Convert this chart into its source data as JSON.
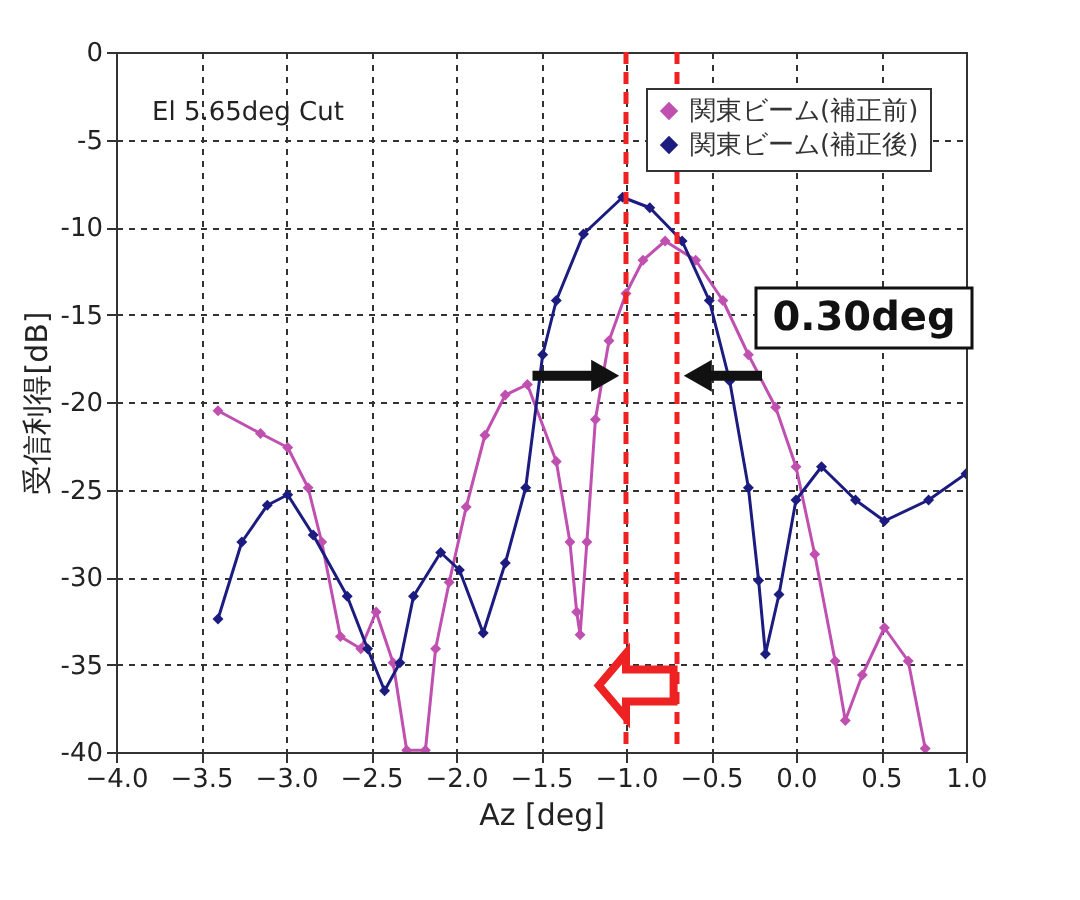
{
  "chart_data": {
    "type": "line",
    "xlabel": "Az [deg]",
    "ylabel": "受信利得[dB]",
    "xlim": [
      -4,
      1
    ],
    "xticks": [
      {
        "value": -4,
        "label": "−4.0"
      },
      {
        "value": -3.5,
        "label": "−3.5"
      },
      {
        "value": -3,
        "label": "−3.0"
      },
      {
        "value": -2.5,
        "label": "−2.5"
      },
      {
        "value": -2,
        "label": "−2.0"
      },
      {
        "value": -1.5,
        "label": "−1.5"
      },
      {
        "value": -1,
        "label": "−1.0"
      },
      {
        "value": -0.5,
        "label": "−0.5"
      },
      {
        "value": 0,
        "label": "0.0"
      },
      {
        "value": 0.5,
        "label": "0.5"
      },
      {
        "value": 1,
        "label": "1.0"
      }
    ],
    "ylim": [
      -40,
      0
    ],
    "yticks": [
      -40,
      -35,
      -30,
      -25,
      -20,
      -15,
      -10,
      -5,
      0
    ],
    "grid": true,
    "legend": "top right",
    "marker": "diamond",
    "line_style": "solid",
    "annotations": [
      "El 5.65deg Cut",
      "0.30deg"
    ],
    "ref_lines": [
      {
        "axis": "x",
        "value": -1.0,
        "color": "#ee2222",
        "line_style": "dashed"
      },
      {
        "axis": "x",
        "value": -0.7,
        "color": "#ee2222",
        "line_style": "dashed"
      }
    ],
    "series": [
      {
        "name": "関東ビーム(補正前)",
        "color": "#c050b0",
        "x": [
          -3.4,
          -3.15,
          -2.99,
          -2.87,
          -2.79,
          -2.68,
          -2.56,
          -2.47,
          -2.37,
          -2.29,
          -2.18,
          -2.12,
          -2.04,
          -1.94,
          -1.83,
          -1.71,
          -1.58,
          -1.41,
          -1.33,
          -1.29,
          -1.27,
          -1.23,
          -1.18,
          -1.1,
          -1.0,
          -0.9,
          -0.77,
          -0.59,
          -0.43,
          -0.28,
          -0.12,
          0.0,
          0.11,
          0.23,
          0.29,
          0.39,
          0.52,
          0.66,
          0.76
        ],
        "values": [
          -20.5,
          -21.8,
          -22.6,
          -24.9,
          -28,
          -33.4,
          -34.1,
          -32,
          -34.9,
          -39.9,
          -39.9,
          -34.1,
          -30.3,
          -26,
          -21.9,
          -19.6,
          -19,
          -23.4,
          -28,
          -32,
          -33.3,
          -28,
          -21,
          -16.5,
          -13.8,
          -11.9,
          -10.8,
          -11.9,
          -14.2,
          -17.3,
          -20.3,
          -23.7,
          -28.7,
          -34.8,
          -38.2,
          -35.6,
          -32.9,
          -34.8,
          -39.8
        ]
      },
      {
        "name": "関東ビーム(補正後)",
        "color": "#1c1c80",
        "x": [
          -3.4,
          -3.26,
          -3.11,
          -2.99,
          -2.84,
          -2.64,
          -2.52,
          -2.42,
          -2.33,
          -2.25,
          -2.09,
          -1.98,
          -1.84,
          -1.71,
          -1.59,
          -1.49,
          -1.41,
          -1.25,
          -1.02,
          -0.86,
          -0.67,
          -0.51,
          -0.39,
          -0.28,
          -0.22,
          -0.18,
          -0.1,
          0.0,
          0.15,
          0.35,
          0.52,
          0.78,
          1.0
        ],
        "values": [
          -32.4,
          -28,
          -25.9,
          -25.3,
          -27.6,
          -31.1,
          -34.1,
          -36.5,
          -34.9,
          -31.1,
          -28.6,
          -29.6,
          -33.2,
          -29.2,
          -24.9,
          -17.3,
          -14.2,
          -10.4,
          -8.3,
          -8.9,
          -10.8,
          -14.2,
          -18.8,
          -24.9,
          -30.2,
          -34.4,
          -31,
          -25.6,
          -23.7,
          -25.6,
          -26.8,
          -25.6,
          -24.1
        ]
      }
    ]
  }
}
